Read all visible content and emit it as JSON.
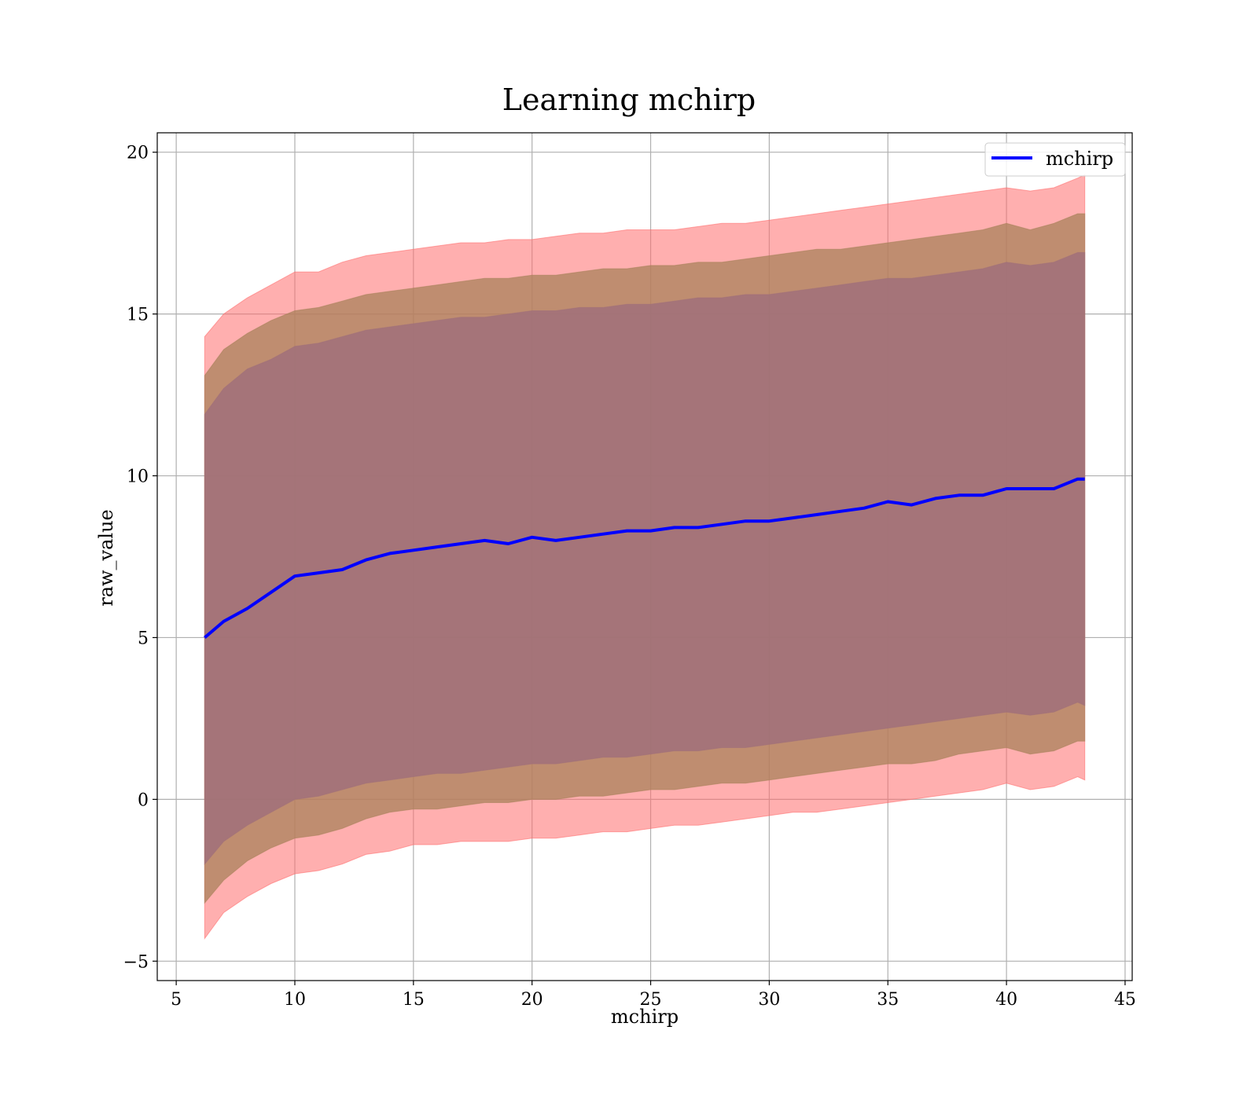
{
  "chart_data": {
    "type": "line",
    "title": "Learning mchirp",
    "xlabel": "mchirp",
    "ylabel": "raw_value",
    "xlim": [
      4.2,
      45.3
    ],
    "ylim": [
      -5.6,
      20.6
    ],
    "x_ticks": [
      5,
      10,
      15,
      20,
      25,
      30,
      35,
      40,
      45
    ],
    "x_tick_labels": [
      "5",
      "10",
      "15",
      "20",
      "25",
      "30",
      "35",
      "40",
      "45"
    ],
    "y_ticks": [
      -5,
      0,
      5,
      10,
      15,
      20
    ],
    "y_tick_labels": [
      "−5",
      "0",
      "5",
      "10",
      "15",
      "20"
    ],
    "grid": true,
    "legend": {
      "position": "top-right",
      "entries": [
        "mchirp"
      ]
    },
    "colors": {
      "line": "#0000ff",
      "band_outer": "#ff6e6e",
      "band_middle": "#a9825b",
      "band_inner": "#a0707a"
    },
    "x": [
      6.2,
      7,
      8,
      9,
      10,
      11,
      12,
      13,
      14,
      15,
      16,
      17,
      18,
      19,
      20,
      21,
      22,
      23,
      24,
      25,
      26,
      27,
      28,
      29,
      30,
      31,
      32,
      33,
      34,
      35,
      36,
      37,
      38,
      39,
      40,
      41,
      42,
      43,
      43.3
    ],
    "series": [
      {
        "name": "mchirp",
        "values": [
          5.0,
          5.5,
          5.9,
          6.4,
          6.9,
          7.0,
          7.1,
          7.4,
          7.6,
          7.7,
          7.8,
          7.9,
          8.0,
          7.9,
          8.1,
          8.0,
          8.1,
          8.2,
          8.3,
          8.3,
          8.4,
          8.4,
          8.5,
          8.6,
          8.6,
          8.7,
          8.8,
          8.9,
          9.0,
          9.2,
          9.1,
          9.3,
          9.4,
          9.4,
          9.6,
          9.6,
          9.6,
          9.9,
          9.9
        ]
      }
    ],
    "bands": [
      {
        "level": "outer",
        "upper": [
          14.3,
          15.0,
          15.5,
          15.9,
          16.3,
          16.3,
          16.6,
          16.8,
          16.9,
          17.0,
          17.1,
          17.2,
          17.2,
          17.3,
          17.3,
          17.4,
          17.5,
          17.5,
          17.6,
          17.6,
          17.6,
          17.7,
          17.8,
          17.8,
          17.9,
          18.0,
          18.1,
          18.2,
          18.3,
          18.4,
          18.5,
          18.6,
          18.7,
          18.8,
          18.9,
          18.8,
          18.9,
          19.2,
          19.3
        ],
        "lower": [
          -4.3,
          -3.5,
          -3.0,
          -2.6,
          -2.3,
          -2.2,
          -2.0,
          -1.7,
          -1.6,
          -1.4,
          -1.4,
          -1.3,
          -1.3,
          -1.3,
          -1.2,
          -1.2,
          -1.1,
          -1.0,
          -1.0,
          -0.9,
          -0.8,
          -0.8,
          -0.7,
          -0.6,
          -0.5,
          -0.4,
          -0.4,
          -0.3,
          -0.2,
          -0.1,
          0.0,
          0.1,
          0.2,
          0.3,
          0.5,
          0.3,
          0.4,
          0.7,
          0.6
        ]
      },
      {
        "level": "middle",
        "upper": [
          13.1,
          13.9,
          14.4,
          14.8,
          15.1,
          15.2,
          15.4,
          15.6,
          15.7,
          15.8,
          15.9,
          16.0,
          16.1,
          16.1,
          16.2,
          16.2,
          16.3,
          16.4,
          16.4,
          16.5,
          16.5,
          16.6,
          16.6,
          16.7,
          16.8,
          16.9,
          17.0,
          17.0,
          17.1,
          17.2,
          17.3,
          17.4,
          17.5,
          17.6,
          17.8,
          17.6,
          17.8,
          18.1,
          18.1
        ],
        "lower": [
          -3.2,
          -2.5,
          -1.9,
          -1.5,
          -1.2,
          -1.1,
          -0.9,
          -0.6,
          -0.4,
          -0.3,
          -0.3,
          -0.2,
          -0.1,
          -0.1,
          0.0,
          0.0,
          0.1,
          0.1,
          0.2,
          0.3,
          0.3,
          0.4,
          0.5,
          0.5,
          0.6,
          0.7,
          0.8,
          0.9,
          1.0,
          1.1,
          1.1,
          1.2,
          1.4,
          1.5,
          1.6,
          1.4,
          1.5,
          1.8,
          1.8
        ]
      },
      {
        "level": "inner",
        "upper": [
          11.9,
          12.7,
          13.3,
          13.6,
          14.0,
          14.1,
          14.3,
          14.5,
          14.6,
          14.7,
          14.8,
          14.9,
          14.9,
          15.0,
          15.1,
          15.1,
          15.2,
          15.2,
          15.3,
          15.3,
          15.4,
          15.5,
          15.5,
          15.6,
          15.6,
          15.7,
          15.8,
          15.9,
          16.0,
          16.1,
          16.1,
          16.2,
          16.3,
          16.4,
          16.6,
          16.5,
          16.6,
          16.9,
          16.9
        ],
        "lower": [
          -2.0,
          -1.3,
          -0.8,
          -0.4,
          0.0,
          0.1,
          0.3,
          0.5,
          0.6,
          0.7,
          0.8,
          0.8,
          0.9,
          1.0,
          1.1,
          1.1,
          1.2,
          1.3,
          1.3,
          1.4,
          1.5,
          1.5,
          1.6,
          1.6,
          1.7,
          1.8,
          1.9,
          2.0,
          2.1,
          2.2,
          2.3,
          2.4,
          2.5,
          2.6,
          2.7,
          2.6,
          2.7,
          3.0,
          2.9
        ]
      }
    ]
  }
}
